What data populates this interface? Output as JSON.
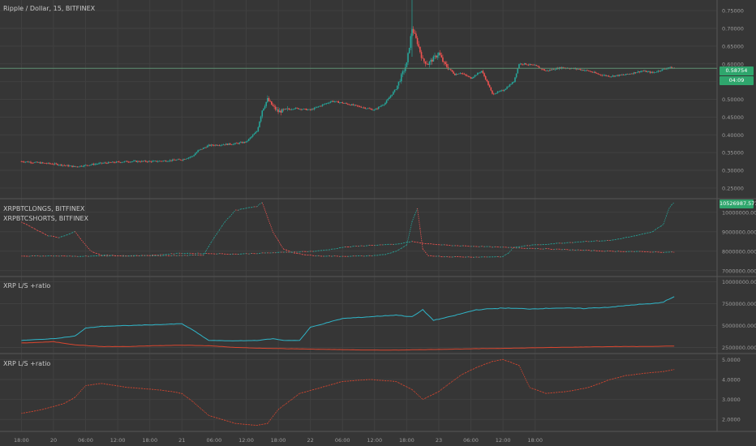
{
  "colors": {
    "background": "#363636",
    "grid": "#414141",
    "separator": "#555555",
    "label": "#9c9c9c",
    "up": "#26a69a",
    "down": "#ef5350",
    "price_line": "#5f8f72",
    "tag": "#2fa66d",
    "longs": "#2fb5c8",
    "shorts": "#d9462f"
  },
  "header": {
    "price_title": "Ripple / Dollar, 15, BITFINEX",
    "longs_title": "XRPBTCLONGS, BITFINEX",
    "shorts_title": "XRPBTCSHORTS, BITFINEX",
    "ls_title": "XRP L/S +ratio",
    "ratio_title": "XRP L/S +ratio"
  },
  "tags": {
    "last_price": "0.58754",
    "countdown": "04:09",
    "longs_last": "10526987.5719"
  },
  "xaxis": {
    "ticks": [
      "18:00",
      "20",
      "06:00",
      "12:00",
      "18:00",
      "21",
      "06:00",
      "12:00",
      "18:00",
      "22",
      "06:00",
      "12:00",
      "18:00",
      "23",
      "06:00",
      "12:00",
      "18:00"
    ]
  },
  "chart_data": [
    {
      "type": "candlestick",
      "title": "Ripple / Dollar, 15, BITFINEX",
      "timeframe": "15",
      "exchange": "BITFINEX",
      "y_ticks": [
        0.25,
        0.3,
        0.35,
        0.4,
        0.45,
        0.5,
        0.55,
        0.6,
        0.65,
        0.7,
        0.75
      ],
      "y_tick_labels": [
        "0.25000",
        "0.30000",
        "0.35000",
        "0.40000",
        "0.45000",
        "0.50000",
        "0.55000",
        "0.60000",
        "0.65000",
        "0.70000",
        "0.75000"
      ],
      "ylim": [
        0.22,
        0.78
      ],
      "last_price": 0.58754,
      "x_units": "hours since 19 18:00",
      "close_series": [
        [
          0,
          0.325
        ],
        [
          6,
          0.318
        ],
        [
          10,
          0.31
        ],
        [
          15,
          0.32
        ],
        [
          20,
          0.325
        ],
        [
          25,
          0.325
        ],
        [
          30,
          0.33
        ],
        [
          32,
          0.34
        ],
        [
          33,
          0.355
        ],
        [
          35,
          0.37
        ],
        [
          40,
          0.375
        ],
        [
          42,
          0.38
        ],
        [
          44,
          0.41
        ],
        [
          45,
          0.47
        ],
        [
          46,
          0.5
        ],
        [
          47,
          0.48
        ],
        [
          48,
          0.465
        ],
        [
          51,
          0.475
        ],
        [
          54,
          0.47
        ],
        [
          58,
          0.495
        ],
        [
          60,
          0.49
        ],
        [
          63,
          0.48
        ],
        [
          66,
          0.47
        ],
        [
          68,
          0.49
        ],
        [
          70,
          0.53
        ],
        [
          71,
          0.565
        ],
        [
          72,
          0.6
        ],
        [
          73,
          0.7
        ],
        [
          74,
          0.66
        ],
        [
          75,
          0.61
        ],
        [
          76,
          0.6
        ],
        [
          78,
          0.63
        ],
        [
          79,
          0.6
        ],
        [
          81,
          0.57
        ],
        [
          82,
          0.575
        ],
        [
          84,
          0.56
        ],
        [
          86,
          0.58
        ],
        [
          87,
          0.55
        ],
        [
          88,
          0.515
        ],
        [
          90,
          0.525
        ],
        [
          92,
          0.55
        ],
        [
          93,
          0.6
        ],
        [
          94,
          0.6
        ],
        [
          96,
          0.595
        ],
        [
          98,
          0.58
        ],
        [
          101,
          0.59
        ],
        [
          104,
          0.585
        ],
        [
          106,
          0.58
        ],
        [
          108,
          0.57
        ],
        [
          110,
          0.565
        ],
        [
          113,
          0.57
        ],
        [
          116,
          0.58
        ],
        [
          118,
          0.575
        ],
        [
          120,
          0.585
        ],
        [
          121,
          0.59
        ],
        [
          122,
          0.5875
        ]
      ]
    },
    {
      "type": "line",
      "title": "XRPBTCLONGS, BITFINEX / XRPBTCSHORTS, BITFINEX",
      "y_ticks": [
        7000000,
        8000000,
        9000000,
        10000000
      ],
      "y_tick_labels": [
        "7000000.0000",
        "8000000.0000",
        "9000000.0000",
        "10000000.0000"
      ],
      "ylim": [
        6700000,
        10700000
      ],
      "last_value": 10526987.5719,
      "series": [
        {
          "name": "XRPBTCLONGS, BITFINEX",
          "style": "green/red stepped",
          "points": [
            [
              0,
              7750000
            ],
            [
              5,
              7760000
            ],
            [
              10,
              7740000
            ],
            [
              15,
              7760000
            ],
            [
              20,
              7770000
            ],
            [
              25,
              7760000
            ],
            [
              30,
              7780000
            ],
            [
              34,
              7800000
            ],
            [
              36,
              8700000
            ],
            [
              38,
              9500000
            ],
            [
              40,
              10100000
            ],
            [
              44,
              10300000
            ],
            [
              45,
              10500000
            ],
            [
              47,
              9000000
            ],
            [
              49,
              8100000
            ],
            [
              51,
              7900000
            ],
            [
              55,
              7760000
            ],
            [
              60,
              7740000
            ],
            [
              65,
              7760000
            ],
            [
              68,
              7830000
            ],
            [
              70,
              8000000
            ],
            [
              72,
              8300000
            ],
            [
              73,
              9500000
            ],
            [
              74,
              10200000
            ],
            [
              75,
              8100000
            ],
            [
              76,
              7780000
            ],
            [
              79,
              7720000
            ],
            [
              85,
              7700000
            ],
            [
              90,
              7720000
            ],
            [
              91,
              7900000
            ],
            [
              92,
              8200000
            ],
            [
              95,
              8300000
            ],
            [
              100,
              8400000
            ],
            [
              105,
              8500000
            ],
            [
              110,
              8550000
            ],
            [
              115,
              8800000
            ],
            [
              118,
              9000000
            ],
            [
              120,
              9400000
            ],
            [
              121,
              10200000
            ],
            [
              122,
              10526987
            ]
          ]
        },
        {
          "name": "XRPBTCSHORTS, BITFINEX",
          "style": "green/red stepped",
          "points": [
            [
              0,
              9500000
            ],
            [
              5,
              8800000
            ],
            [
              7,
              8700000
            ],
            [
              10,
              9000000
            ],
            [
              13,
              8000000
            ],
            [
              15,
              7800000
            ],
            [
              20,
              7750000
            ],
            [
              25,
              7800000
            ],
            [
              30,
              7900000
            ],
            [
              35,
              7880000
            ],
            [
              40,
              7850000
            ],
            [
              45,
              7900000
            ],
            [
              50,
              7950000
            ],
            [
              55,
              8000000
            ],
            [
              58,
              8100000
            ],
            [
              60,
              8200000
            ],
            [
              65,
              8300000
            ],
            [
              70,
              8350000
            ],
            [
              73,
              8500000
            ],
            [
              75,
              8400000
            ],
            [
              80,
              8300000
            ],
            [
              85,
              8250000
            ],
            [
              90,
              8200000
            ],
            [
              95,
              8150000
            ],
            [
              100,
              8100000
            ],
            [
              105,
              8050000
            ],
            [
              110,
              8000000
            ],
            [
              115,
              7980000
            ],
            [
              120,
              7950000
            ],
            [
              122,
              7950000
            ]
          ]
        }
      ]
    },
    {
      "type": "line",
      "title": "XRP L/S +ratio",
      "y_ticks": [
        2500000,
        5000000,
        7500000,
        10000000
      ],
      "y_tick_labels": [
        "2500000.0000",
        "5000000.0000",
        "7500000.0000",
        "10000000.0000"
      ],
      "ylim": [
        1800000,
        10600000
      ],
      "series": [
        {
          "name": "",
          "color": "longs",
          "points": [
            [
              0,
              3300000
            ],
            [
              6,
              3500000
            ],
            [
              10,
              3800000
            ],
            [
              12,
              4700000
            ],
            [
              15,
              4900000
            ],
            [
              20,
              5000000
            ],
            [
              25,
              5100000
            ],
            [
              30,
              5200000
            ],
            [
              32,
              4500000
            ],
            [
              35,
              3300000
            ],
            [
              40,
              3250000
            ],
            [
              44,
              3300000
            ],
            [
              47,
              3500000
            ],
            [
              49,
              3300000
            ],
            [
              52,
              3300000
            ],
            [
              54,
              4800000
            ],
            [
              60,
              5800000
            ],
            [
              65,
              6000000
            ],
            [
              70,
              6200000
            ],
            [
              73,
              6000000
            ],
            [
              75,
              6800000
            ],
            [
              77,
              5600000
            ],
            [
              80,
              6000000
            ],
            [
              85,
              6800000
            ],
            [
              90,
              7000000
            ],
            [
              95,
              6900000
            ],
            [
              100,
              7000000
            ],
            [
              105,
              6950000
            ],
            [
              110,
              7100000
            ],
            [
              115,
              7400000
            ],
            [
              118,
              7500000
            ],
            [
              120,
              7700000
            ],
            [
              121,
              8000000
            ],
            [
              122,
              8300000
            ]
          ]
        },
        {
          "name": "",
          "color": "shorts",
          "points": [
            [
              0,
              3000000
            ],
            [
              6,
              3150000
            ],
            [
              10,
              2800000
            ],
            [
              15,
              2600000
            ],
            [
              20,
              2600000
            ],
            [
              25,
              2700000
            ],
            [
              30,
              2750000
            ],
            [
              35,
              2700000
            ],
            [
              40,
              2500000
            ],
            [
              45,
              2400000
            ],
            [
              50,
              2350000
            ],
            [
              55,
              2300000
            ],
            [
              60,
              2250000
            ],
            [
              65,
              2200000
            ],
            [
              70,
              2200000
            ],
            [
              75,
              2250000
            ],
            [
              80,
              2300000
            ],
            [
              85,
              2350000
            ],
            [
              90,
              2400000
            ],
            [
              95,
              2450000
            ],
            [
              100,
              2500000
            ],
            [
              105,
              2550000
            ],
            [
              110,
              2600000
            ],
            [
              115,
              2600000
            ],
            [
              122,
              2650000
            ]
          ]
        }
      ]
    },
    {
      "type": "line",
      "title": "XRP L/S +ratio",
      "y_ticks": [
        2,
        3,
        4,
        5
      ],
      "y_tick_labels": [
        "2.0000",
        "3.0000",
        "4.0000",
        "5.0000"
      ],
      "ylim": [
        1.4,
        5.3
      ],
      "series": [
        {
          "name": "",
          "color": "shorts",
          "points": [
            [
              0,
              2.3
            ],
            [
              4,
              2.5
            ],
            [
              8,
              2.8
            ],
            [
              10,
              3.1
            ],
            [
              12,
              3.7
            ],
            [
              15,
              3.8
            ],
            [
              20,
              3.6
            ],
            [
              25,
              3.5
            ],
            [
              28,
              3.4
            ],
            [
              30,
              3.3
            ],
            [
              32,
              2.9
            ],
            [
              35,
              2.2
            ],
            [
              40,
              1.8
            ],
            [
              44,
              1.7
            ],
            [
              46,
              1.8
            ],
            [
              48,
              2.5
            ],
            [
              52,
              3.3
            ],
            [
              56,
              3.6
            ],
            [
              60,
              3.9
            ],
            [
              65,
              4.0
            ],
            [
              70,
              3.9
            ],
            [
              73,
              3.5
            ],
            [
              75,
              3.0
            ],
            [
              78,
              3.4
            ],
            [
              82,
              4.2
            ],
            [
              85,
              4.6
            ],
            [
              88,
              4.9
            ],
            [
              90,
              5.0
            ],
            [
              93,
              4.7
            ],
            [
              95,
              3.6
            ],
            [
              98,
              3.3
            ],
            [
              102,
              3.4
            ],
            [
              106,
              3.6
            ],
            [
              110,
              4.0
            ],
            [
              113,
              4.2
            ],
            [
              116,
              4.3
            ],
            [
              120,
              4.4
            ],
            [
              122,
              4.5
            ]
          ]
        }
      ]
    }
  ]
}
